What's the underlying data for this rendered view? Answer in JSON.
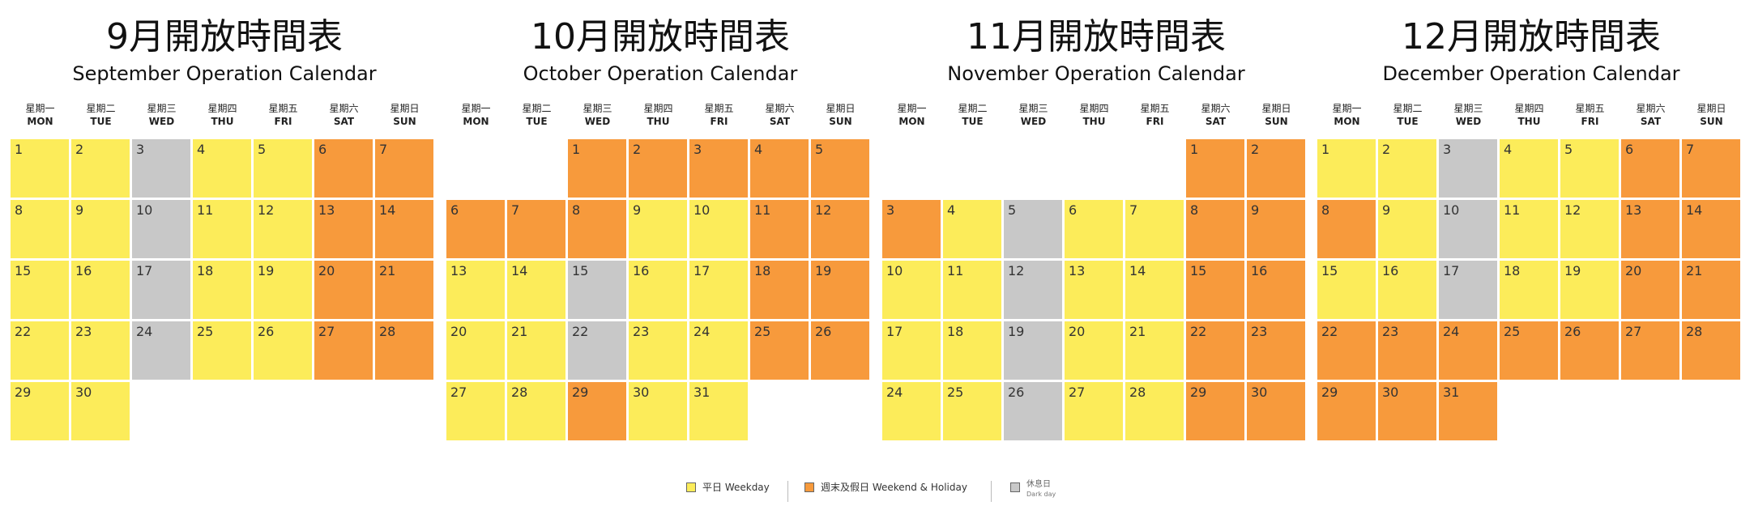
{
  "colors": {
    "weekday": "#fcec5a",
    "weekend": "#f79a3c",
    "dark": "#c8c8c8"
  },
  "weekdays": [
    {
      "zh": "星期一",
      "en": "MON"
    },
    {
      "zh": "星期二",
      "en": "TUE"
    },
    {
      "zh": "星期三",
      "en": "WED"
    },
    {
      "zh": "星期四",
      "en": "THU"
    },
    {
      "zh": "星期五",
      "en": "FRI"
    },
    {
      "zh": "星期六",
      "en": "SAT"
    },
    {
      "zh": "星期日",
      "en": "SUN"
    }
  ],
  "months": [
    {
      "title": "9月開放時間表",
      "subtitle": "September Operation Calendar",
      "start_weekday_index": 0,
      "days": [
        "weekday",
        "weekday",
        "dark",
        "weekday",
        "weekday",
        "weekend",
        "weekend",
        "weekday",
        "weekday",
        "dark",
        "weekday",
        "weekday",
        "weekend",
        "weekend",
        "weekday",
        "weekday",
        "dark",
        "weekday",
        "weekday",
        "weekend",
        "weekend",
        "weekday",
        "weekday",
        "dark",
        "weekday",
        "weekday",
        "weekend",
        "weekend",
        "weekday",
        "weekday"
      ]
    },
    {
      "title": "10月開放時間表",
      "subtitle": "October Operation Calendar",
      "start_weekday_index": 2,
      "days": [
        "weekend",
        "weekend",
        "weekend",
        "weekend",
        "weekend",
        "weekend",
        "weekend",
        "weekend",
        "weekday",
        "weekday",
        "weekend",
        "weekend",
        "weekday",
        "weekday",
        "dark",
        "weekday",
        "weekday",
        "weekend",
        "weekend",
        "weekday",
        "weekday",
        "dark",
        "weekday",
        "weekday",
        "weekend",
        "weekend",
        "weekday",
        "weekday",
        "weekend",
        "weekday",
        "weekday"
      ]
    },
    {
      "title": "11月開放時間表",
      "subtitle": "November Operation Calendar",
      "start_weekday_index": 5,
      "days": [
        "weekend",
        "weekend",
        "weekend",
        "weekday",
        "dark",
        "weekday",
        "weekday",
        "weekend",
        "weekend",
        "weekday",
        "weekday",
        "dark",
        "weekday",
        "weekday",
        "weekend",
        "weekend",
        "weekday",
        "weekday",
        "dark",
        "weekday",
        "weekday",
        "weekend",
        "weekend",
        "weekday",
        "weekday",
        "dark",
        "weekday",
        "weekday",
        "weekend",
        "weekend"
      ]
    },
    {
      "title": "12月開放時間表",
      "subtitle": "December Operation Calendar",
      "start_weekday_index": 0,
      "days": [
        "weekday",
        "weekday",
        "dark",
        "weekday",
        "weekday",
        "weekend",
        "weekend",
        "weekend",
        "weekday",
        "dark",
        "weekday",
        "weekday",
        "weekend",
        "weekend",
        "weekday",
        "weekday",
        "dark",
        "weekday",
        "weekday",
        "weekend",
        "weekend",
        "weekend",
        "weekend",
        "weekend",
        "weekend",
        "weekend",
        "weekend",
        "weekend",
        "weekend",
        "weekend",
        "weekend"
      ]
    }
  ],
  "legend": {
    "weekday_label": "平日 Weekday",
    "weekend_label": "週末及假日 Weekend & Holiday",
    "dark_label": "休息日",
    "dark_label_en": "Dark day"
  }
}
